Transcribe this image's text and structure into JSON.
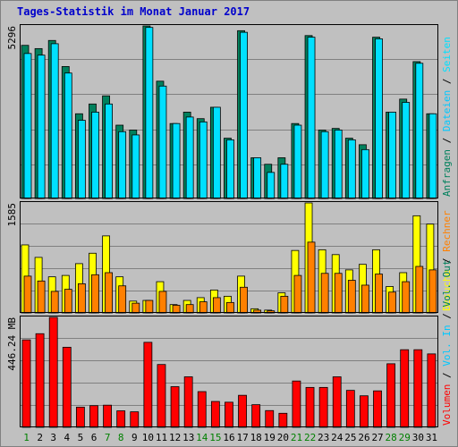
{
  "title": "Tages-Statistik im Monat Januar 2017",
  "colors": {
    "background": "#c0c0c0",
    "title": "#0000cc",
    "anfragen": "#00805c",
    "dateien": "#00e0ff",
    "seiten": "#00c8ff",
    "besuche": "#ffff00",
    "rechner": "#ff8000",
    "volumen": "#ff0000",
    "weekend_label": "#008000",
    "weekday_label": "#000000"
  },
  "chart_data": [
    {
      "type": "bar",
      "panel": "hits",
      "ymax_label": "5296",
      "ymax": 5296,
      "right_label": [
        {
          "text": "Anfragen",
          "color_key": "anfragen"
        },
        {
          "text": " / ",
          "color_key": "weekday_label"
        },
        {
          "text": "Dateien",
          "color_key": "seiten"
        },
        {
          "text": " / ",
          "color_key": "weekday_label"
        },
        {
          "text": "Seiten",
          "color_key": "dateien"
        }
      ],
      "series": [
        {
          "name": "Anfragen",
          "values": [
            4700,
            4600,
            4850,
            4050,
            2600,
            2900,
            3150,
            2250,
            2100,
            5296,
            3600,
            2300,
            2650,
            2450,
            2800,
            1850,
            5150,
            1250,
            1050,
            1250,
            2300,
            5000,
            2100,
            2150,
            1850,
            1650,
            4950,
            2650,
            3050,
            4200,
            2600
          ]
        },
        {
          "name": "Dateien",
          "values": [
            4450,
            4400,
            4750,
            3850,
            2400,
            2650,
            2900,
            2050,
            1950,
            5250,
            3450,
            2300,
            2500,
            2350,
            2800,
            1800,
            5100,
            1250,
            800,
            1050,
            2250,
            4950,
            2050,
            2100,
            1800,
            1500,
            4900,
            2650,
            2950,
            4150,
            2600
          ]
        }
      ]
    },
    {
      "type": "bar",
      "panel": "visits",
      "ymax_label": "1585",
      "ymax": 1585,
      "right_label": [
        {
          "text": "Besuche",
          "color_key": "besuche"
        },
        {
          "text": " / ",
          "color_key": "weekday_label"
        },
        {
          "text": "Rechner",
          "color_key": "rechner"
        }
      ],
      "series": [
        {
          "name": "Besuche",
          "values": [
            980,
            800,
            520,
            540,
            710,
            860,
            1110,
            520,
            170,
            180,
            450,
            120,
            180,
            220,
            330,
            240,
            530,
            60,
            40,
            290,
            900,
            1585,
            910,
            840,
            620,
            700,
            910,
            380,
            580,
            1400,
            1280
          ]
        },
        {
          "name": "Rechner",
          "values": [
            530,
            460,
            310,
            340,
            420,
            550,
            580,
            390,
            140,
            180,
            310,
            110,
            120,
            160,
            220,
            150,
            370,
            40,
            30,
            240,
            540,
            1020,
            570,
            570,
            470,
            400,
            560,
            300,
            450,
            670,
            620
          ]
        }
      ]
    },
    {
      "type": "bar",
      "panel": "volume",
      "ymax_label": "446.24 MB",
      "ymax": 446.24,
      "right_label": [
        {
          "text": "Volumen",
          "color_key": "volumen"
        },
        {
          "text": " / ",
          "color_key": "weekday_label"
        },
        {
          "text": "Vol. In",
          "color_key": "seiten"
        },
        {
          "text": " / ",
          "color_key": "weekday_label"
        },
        {
          "text": "Vol. Out",
          "color_key": "anfragen"
        }
      ],
      "series": [
        {
          "name": "Volumen",
          "values": [
            355,
            380,
            446.24,
            325,
            82,
            88,
            90,
            67,
            63,
            345,
            255,
            165,
            205,
            145,
            105,
            102,
            130,
            92,
            68,
            57,
            188,
            162,
            162,
            205,
            150,
            128,
            148,
            258,
            315,
            315,
            298
          ]
        }
      ]
    }
  ],
  "x_labels": [
    "1",
    "2",
    "3",
    "4",
    "5",
    "6",
    "7",
    "8",
    "9",
    "10",
    "11",
    "12",
    "13",
    "14",
    "15",
    "16",
    "17",
    "18",
    "19",
    "20",
    "21",
    "22",
    "23",
    "24",
    "25",
    "26",
    "27",
    "28",
    "29",
    "30",
    "31"
  ],
  "weekend_days": [
    "1",
    "7",
    "8",
    "14",
    "15",
    "21",
    "22",
    "28",
    "29"
  ]
}
